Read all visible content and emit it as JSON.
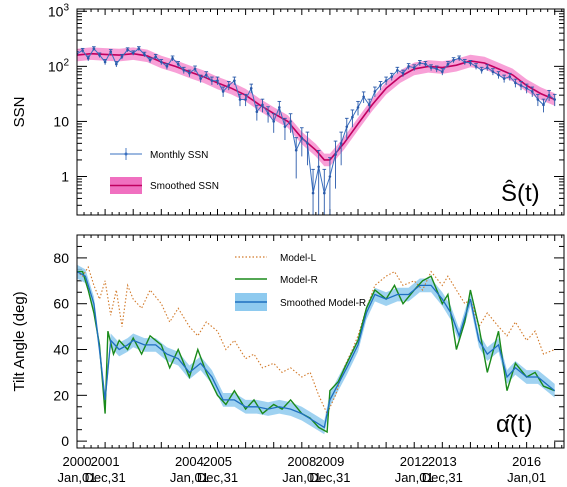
{
  "chart_data": [
    {
      "id": "ssn",
      "type": "line",
      "ylabel": "SSN",
      "yscale": "log",
      "ylim": [
        0.2,
        1100
      ],
      "yticks": [
        {
          "v": 1,
          "label": "1"
        },
        {
          "v": 10,
          "label": "10"
        },
        {
          "v": 100,
          "label": "10^2"
        },
        {
          "v": 1000,
          "label": "10^3"
        }
      ],
      "curve_label": "Ŝ(t)",
      "legend": [
        {
          "label": "Monthly SSN",
          "style": "line-marker-errorbar",
          "color": "#3a70c0"
        },
        {
          "label": "Smoothed SSN",
          "style": "band-line",
          "color": "#c00060",
          "band_color": "#f070c0"
        }
      ],
      "series": [
        {
          "name": "Monthly SSN",
          "x": [
            2000.0,
            2000.2,
            2000.4,
            2000.6,
            2000.8,
            2001.0,
            2001.2,
            2001.4,
            2001.6,
            2001.8,
            2002.0,
            2002.2,
            2002.4,
            2002.6,
            2002.8,
            2003.0,
            2003.2,
            2003.4,
            2003.6,
            2003.8,
            2004.0,
            2004.2,
            2004.4,
            2004.6,
            2004.8,
            2005.0,
            2005.2,
            2005.4,
            2005.6,
            2005.8,
            2006.0,
            2006.2,
            2006.4,
            2006.6,
            2006.8,
            2007.0,
            2007.2,
            2007.4,
            2007.6,
            2007.8,
            2008.0,
            2008.2,
            2008.4,
            2008.6,
            2008.8,
            2009.0,
            2009.2,
            2009.4,
            2009.6,
            2009.8,
            2010.0,
            2010.2,
            2010.4,
            2010.6,
            2010.8,
            2011.0,
            2011.2,
            2011.4,
            2011.6,
            2011.8,
            2012.0,
            2012.2,
            2012.4,
            2012.6,
            2012.8,
            2013.0,
            2013.2,
            2013.4,
            2013.6,
            2013.8,
            2014.0,
            2014.2,
            2014.4,
            2014.6,
            2014.8,
            2015.0,
            2015.2,
            2015.4,
            2015.6,
            2015.8,
            2016.0,
            2016.2,
            2016.4,
            2016.6,
            2016.8,
            2017.0
          ],
          "values": [
            170,
            195,
            140,
            210,
            160,
            120,
            185,
            110,
            150,
            200,
            175,
            210,
            165,
            130,
            150,
            120,
            100,
            140,
            110,
            85,
            75,
            90,
            60,
            70,
            55,
            55,
            35,
            45,
            55,
            25,
            25,
            40,
            15,
            20,
            14,
            10,
            18,
            8,
            10,
            3,
            5,
            4,
            0.5,
            1.5,
            0.5,
            1,
            2.5,
            4,
            8,
            12,
            18,
            28,
            20,
            35,
            45,
            55,
            65,
            85,
            75,
            100,
            95,
            115,
            110,
            95,
            90,
            80,
            110,
            130,
            140,
            120,
            115,
            100,
            85,
            95,
            80,
            70,
            60,
            65,
            50,
            45,
            40,
            35,
            25,
            20,
            30,
            25
          ]
        },
        {
          "name": "Smoothed SSN",
          "x": [
            2000.0,
            2000.5,
            2001.0,
            2001.5,
            2002.0,
            2002.5,
            2003.0,
            2003.5,
            2004.0,
            2004.5,
            2005.0,
            2005.5,
            2006.0,
            2006.5,
            2007.0,
            2007.5,
            2008.0,
            2008.5,
            2008.8,
            2009.0,
            2009.5,
            2010.0,
            2010.5,
            2011.0,
            2011.5,
            2012.0,
            2012.5,
            2013.0,
            2013.5,
            2014.0,
            2014.5,
            2015.0,
            2015.5,
            2016.0,
            2016.5,
            2017.0
          ],
          "values": [
            160,
            170,
            165,
            160,
            170,
            155,
            120,
            100,
            80,
            65,
            50,
            40,
            30,
            20,
            14,
            10,
            5,
            3,
            2,
            2,
            4,
            9,
            20,
            40,
            65,
            90,
            100,
            95,
            105,
            125,
            115,
            90,
            70,
            45,
            32,
            25
          ]
        }
      ]
    },
    {
      "id": "tilt",
      "type": "line",
      "ylabel": "Tilt Angle (deg)",
      "ylim": [
        -3,
        90
      ],
      "yticks": [
        0,
        20,
        40,
        60,
        80
      ],
      "curve_label": "α̂(t)",
      "legend": [
        {
          "label": "Model-L",
          "style": "dotted",
          "color": "#d27a2a"
        },
        {
          "label": "Model-R",
          "style": "solid",
          "color": "#1a8a1a"
        },
        {
          "label": "Smoothed Model-R",
          "style": "band-line",
          "color": "#1f6fbf",
          "band_color": "#8ecaef"
        }
      ],
      "series": [
        {
          "name": "Model-L",
          "x": [
            2000.0,
            2000.2,
            2000.4,
            2000.6,
            2000.8,
            2001.0,
            2001.2,
            2001.4,
            2001.6,
            2001.8,
            2002.0,
            2002.3,
            2002.6,
            2003.0,
            2003.3,
            2003.6,
            2004.0,
            2004.3,
            2004.6,
            2005.0,
            2005.3,
            2005.6,
            2006.0,
            2006.3,
            2006.6,
            2007.0,
            2007.3,
            2007.6,
            2008.0,
            2008.3,
            2008.6,
            2008.9,
            2009.2,
            2009.5,
            2009.8,
            2010.0,
            2010.3,
            2010.6,
            2011.0,
            2011.3,
            2011.6,
            2012.0,
            2012.3,
            2012.6,
            2013.0,
            2013.2,
            2013.5,
            2013.8,
            2014.0,
            2014.3,
            2014.6,
            2015.0,
            2015.3,
            2015.6,
            2016.0,
            2016.3,
            2016.6,
            2017.0
          ],
          "values": [
            74,
            72,
            76,
            68,
            62,
            70,
            55,
            66,
            50,
            68,
            62,
            58,
            66,
            60,
            52,
            58,
            50,
            46,
            52,
            48,
            40,
            44,
            36,
            38,
            32,
            34,
            30,
            32,
            28,
            30,
            20,
            12,
            20,
            32,
            40,
            46,
            58,
            68,
            72,
            74,
            68,
            70,
            66,
            74,
            68,
            72,
            66,
            60,
            62,
            50,
            56,
            50,
            46,
            52,
            44,
            48,
            38,
            40
          ]
        },
        {
          "name": "Model-R",
          "x": [
            2000.0,
            2000.2,
            2000.4,
            2000.6,
            2000.8,
            2001.0,
            2001.1,
            2001.3,
            2001.5,
            2001.8,
            2002.0,
            2002.3,
            2002.6,
            2003.0,
            2003.3,
            2003.6,
            2004.0,
            2004.3,
            2004.6,
            2005.0,
            2005.3,
            2005.6,
            2006.0,
            2006.3,
            2006.6,
            2007.0,
            2007.3,
            2007.6,
            2008.0,
            2008.3,
            2008.6,
            2008.9,
            2009.0,
            2009.3,
            2009.6,
            2010.0,
            2010.3,
            2010.6,
            2011.0,
            2011.3,
            2011.6,
            2012.0,
            2012.3,
            2012.6,
            2013.0,
            2013.2,
            2013.5,
            2013.8,
            2014.0,
            2014.3,
            2014.6,
            2015.0,
            2015.3,
            2015.6,
            2016.0,
            2016.3,
            2016.6,
            2017.0
          ],
          "values": [
            74,
            74,
            66,
            56,
            42,
            12,
            48,
            38,
            44,
            40,
            45,
            38,
            46,
            42,
            32,
            40,
            28,
            40,
            30,
            20,
            16,
            22,
            14,
            18,
            12,
            16,
            14,
            18,
            12,
            10,
            6,
            4,
            22,
            26,
            34,
            44,
            58,
            66,
            62,
            68,
            60,
            66,
            70,
            72,
            60,
            64,
            40,
            52,
            66,
            50,
            30,
            48,
            22,
            34,
            28,
            30,
            24,
            22
          ]
        },
        {
          "name": "Smoothed Model-R",
          "x": [
            2000.0,
            2000.3,
            2000.6,
            2000.8,
            2001.0,
            2001.2,
            2001.5,
            2001.8,
            2002.0,
            2002.4,
            2002.8,
            2003.2,
            2003.6,
            2004.0,
            2004.4,
            2004.8,
            2005.2,
            2005.6,
            2006.0,
            2006.4,
            2006.8,
            2007.2,
            2007.6,
            2008.0,
            2008.4,
            2008.8,
            2009.0,
            2009.3,
            2009.6,
            2010.0,
            2010.3,
            2010.6,
            2011.0,
            2011.4,
            2011.8,
            2012.2,
            2012.6,
            2013.0,
            2013.3,
            2013.6,
            2014.0,
            2014.3,
            2014.6,
            2015.0,
            2015.3,
            2015.6,
            2016.0,
            2016.4,
            2016.8,
            2017.0
          ],
          "values": [
            74,
            72,
            60,
            40,
            18,
            44,
            40,
            42,
            44,
            42,
            42,
            38,
            36,
            30,
            34,
            28,
            18,
            18,
            15,
            15,
            14,
            15,
            14,
            12,
            9,
            6,
            18,
            25,
            32,
            42,
            56,
            64,
            62,
            64,
            64,
            68,
            68,
            62,
            56,
            46,
            62,
            44,
            38,
            42,
            28,
            32,
            28,
            28,
            24,
            22
          ]
        }
      ]
    }
  ],
  "xaxis": {
    "min": 2000.0,
    "max": 2017.33,
    "ticks": [
      {
        "v": 2000.0,
        "year": "2000",
        "date": "Jan,01"
      },
      {
        "v": 2001.0,
        "year": "2001",
        "date": "Dec,31"
      },
      {
        "v": 2004.0,
        "year": "2004",
        "date": "Jan,01"
      },
      {
        "v": 2005.0,
        "year": "2005",
        "date": "Dec,31"
      },
      {
        "v": 2008.0,
        "year": "2008",
        "date": "Jan,01"
      },
      {
        "v": 2009.0,
        "year": "2009",
        "date": "Dec,31"
      },
      {
        "v": 2012.0,
        "year": "2012",
        "date": "Jan,01"
      },
      {
        "v": 2013.0,
        "year": "2013",
        "date": "Dec,31"
      },
      {
        "v": 2016.0,
        "year": "2016",
        "date": "Jan,01"
      }
    ]
  }
}
